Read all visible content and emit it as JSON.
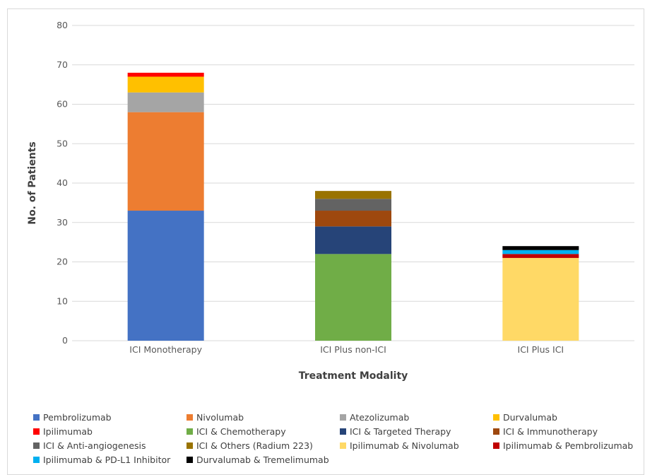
{
  "chart_data": {
    "type": "bar",
    "stacked": true,
    "categories": [
      "ICI Monotherapy",
      "ICI Plus non-ICI",
      "ICI Plus ICI"
    ],
    "xlabel": "Treatment Modality",
    "ylabel": "No. of Patients",
    "ylim": [
      0,
      80
    ],
    "yticks": [
      0,
      10,
      20,
      30,
      40,
      50,
      60,
      70,
      80
    ],
    "grid": true,
    "legend_position": "bottom",
    "series": [
      {
        "name": "Pembrolizumab",
        "color": "#4472C4",
        "values": [
          33,
          0,
          0
        ]
      },
      {
        "name": "Nivolumab",
        "color": "#ED7D31",
        "values": [
          25,
          0,
          0
        ]
      },
      {
        "name": "Atezolizumab",
        "color": "#A5A5A5",
        "values": [
          5,
          0,
          0
        ]
      },
      {
        "name": "Durvalumab",
        "color": "#FFC000",
        "values": [
          4,
          0,
          0
        ]
      },
      {
        "name": "Ipilimumab",
        "color": "#FF0000",
        "values": [
          1,
          0,
          0
        ]
      },
      {
        "name": "ICI & Chemotherapy",
        "color": "#70AD47",
        "values": [
          0,
          22,
          0
        ]
      },
      {
        "name": "ICI & Targeted Therapy",
        "color": "#264478",
        "values": [
          0,
          7,
          0
        ]
      },
      {
        "name": "ICI & Immunotherapy",
        "color": "#9E480E",
        "values": [
          0,
          4,
          0
        ]
      },
      {
        "name": "ICI & Anti-angiogenesis",
        "color": "#636363",
        "values": [
          0,
          3,
          0
        ]
      },
      {
        "name": "ICI & Others (Radium 223)",
        "color": "#997300",
        "values": [
          0,
          2,
          0
        ]
      },
      {
        "name": "Ipilimumab & Nivolumab",
        "color": "#FFD966",
        "values": [
          0,
          0,
          21
        ]
      },
      {
        "name": "Ipilimumab & Pembrolizumab",
        "color": "#C00000",
        "values": [
          0,
          0,
          1
        ]
      },
      {
        "name": "Ipilimumab & PD-L1 Inhibitor",
        "color": "#00B0F0",
        "values": [
          0,
          0,
          1
        ]
      },
      {
        "name": "Durvalumab & Tremelimumab",
        "color": "#000000",
        "values": [
          0,
          0,
          1
        ]
      }
    ]
  }
}
